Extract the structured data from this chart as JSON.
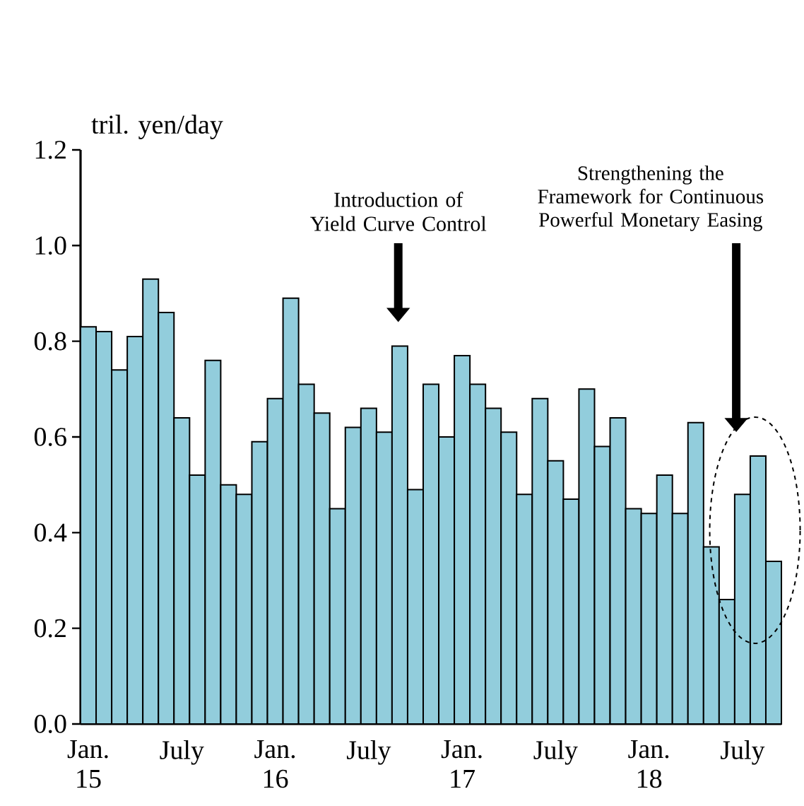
{
  "chart_data": {
    "type": "bar",
    "ylabel": "tril. yen/day",
    "categories": [
      "Jan. 15",
      null,
      null,
      null,
      null,
      null,
      "July",
      null,
      null,
      null,
      null,
      null,
      "Jan. 16",
      null,
      null,
      null,
      null,
      null,
      "July",
      null,
      null,
      null,
      null,
      null,
      "Jan. 17",
      null,
      null,
      null,
      null,
      null,
      "July",
      null,
      null,
      null,
      null,
      null,
      "Jan. 18",
      null,
      null,
      null,
      null,
      null,
      "July",
      null,
      null
    ],
    "values": [
      0.83,
      0.82,
      0.74,
      0.81,
      0.93,
      0.86,
      0.64,
      0.52,
      0.76,
      0.5,
      0.48,
      0.59,
      0.68,
      0.89,
      0.71,
      0.65,
      0.45,
      0.62,
      0.66,
      0.61,
      0.79,
      0.49,
      0.71,
      0.6,
      0.77,
      0.71,
      0.66,
      0.61,
      0.48,
      0.68,
      0.55,
      0.47,
      0.7,
      0.58,
      0.64,
      0.45,
      0.44,
      0.52,
      0.44,
      0.63,
      0.37,
      0.26,
      0.48,
      0.56,
      0.34
    ],
    "color": "#92cddc",
    "ylim": [
      0,
      1.2
    ],
    "yticks": [
      {
        "value": 0,
        "label": "0.0"
      },
      0.2,
      0.4,
      0.6,
      0.8,
      {
        "value": 1,
        "label": "1.0"
      },
      1.2
    ],
    "annotations": [
      "Introduction of Yield Curve Control",
      "Strengthening the Framework for Continuous Powerful Monetary Easing"
    ]
  }
}
